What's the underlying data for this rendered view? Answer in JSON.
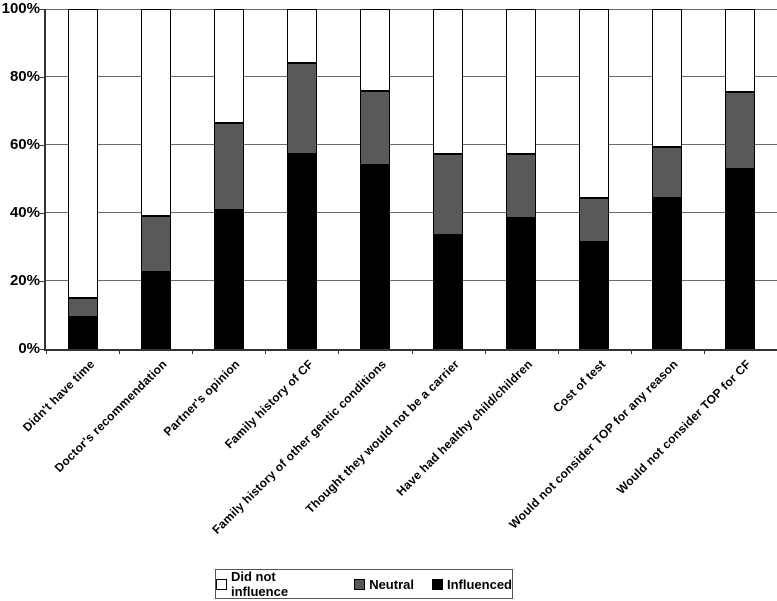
{
  "figure": {
    "background": "#ffffff",
    "text_color": "#000000"
  },
  "chart_data": {
    "type": "bar",
    "stacked": true,
    "orientation": "vertical",
    "title": "",
    "xlabel": "",
    "ylabel": "",
    "categories": [
      "Didn't have time",
      "Doctor's recommendation",
      "Partner's opinion",
      "Family history of CF",
      "Family history of other gentic conditions",
      "Thought they would not be a carrier",
      "Have had healthy child/children",
      "Cost of test",
      "Would not consider TOP for any reason",
      "Would not consider TOP for CF"
    ],
    "series": [
      {
        "name": "Influenced",
        "color": "#000000",
        "values": [
          9.5,
          22.5,
          41,
          57.5,
          54,
          33.5,
          38.5,
          31.5,
          44.5,
          53
        ]
      },
      {
        "name": "Neutral",
        "color": "#595959",
        "values": [
          5.5,
          16.5,
          25.5,
          26.5,
          22,
          24,
          19,
          13,
          15,
          22.5
        ]
      },
      {
        "name": "Did not influence",
        "color": "#ffffff",
        "values": [
          85,
          61,
          33.5,
          16,
          24,
          42.5,
          42.5,
          55.5,
          40.5,
          24.5
        ]
      }
    ],
    "ylim": [
      0,
      100
    ],
    "yticks": [
      0,
      20,
      40,
      60,
      80,
      100
    ],
    "ytick_labels": [
      "0%",
      "20%",
      "40%",
      "60%",
      "80%",
      "100%"
    ],
    "grid": "horizontal",
    "gridline_color": "#6b6b6b",
    "legend": [
      {
        "label": "Did not influence",
        "color": "#ffffff"
      },
      {
        "label": "Neutral",
        "color": "#595959"
      },
      {
        "label": "Influenced",
        "color": "#000000"
      }
    ],
    "legend_position": "bottom"
  }
}
